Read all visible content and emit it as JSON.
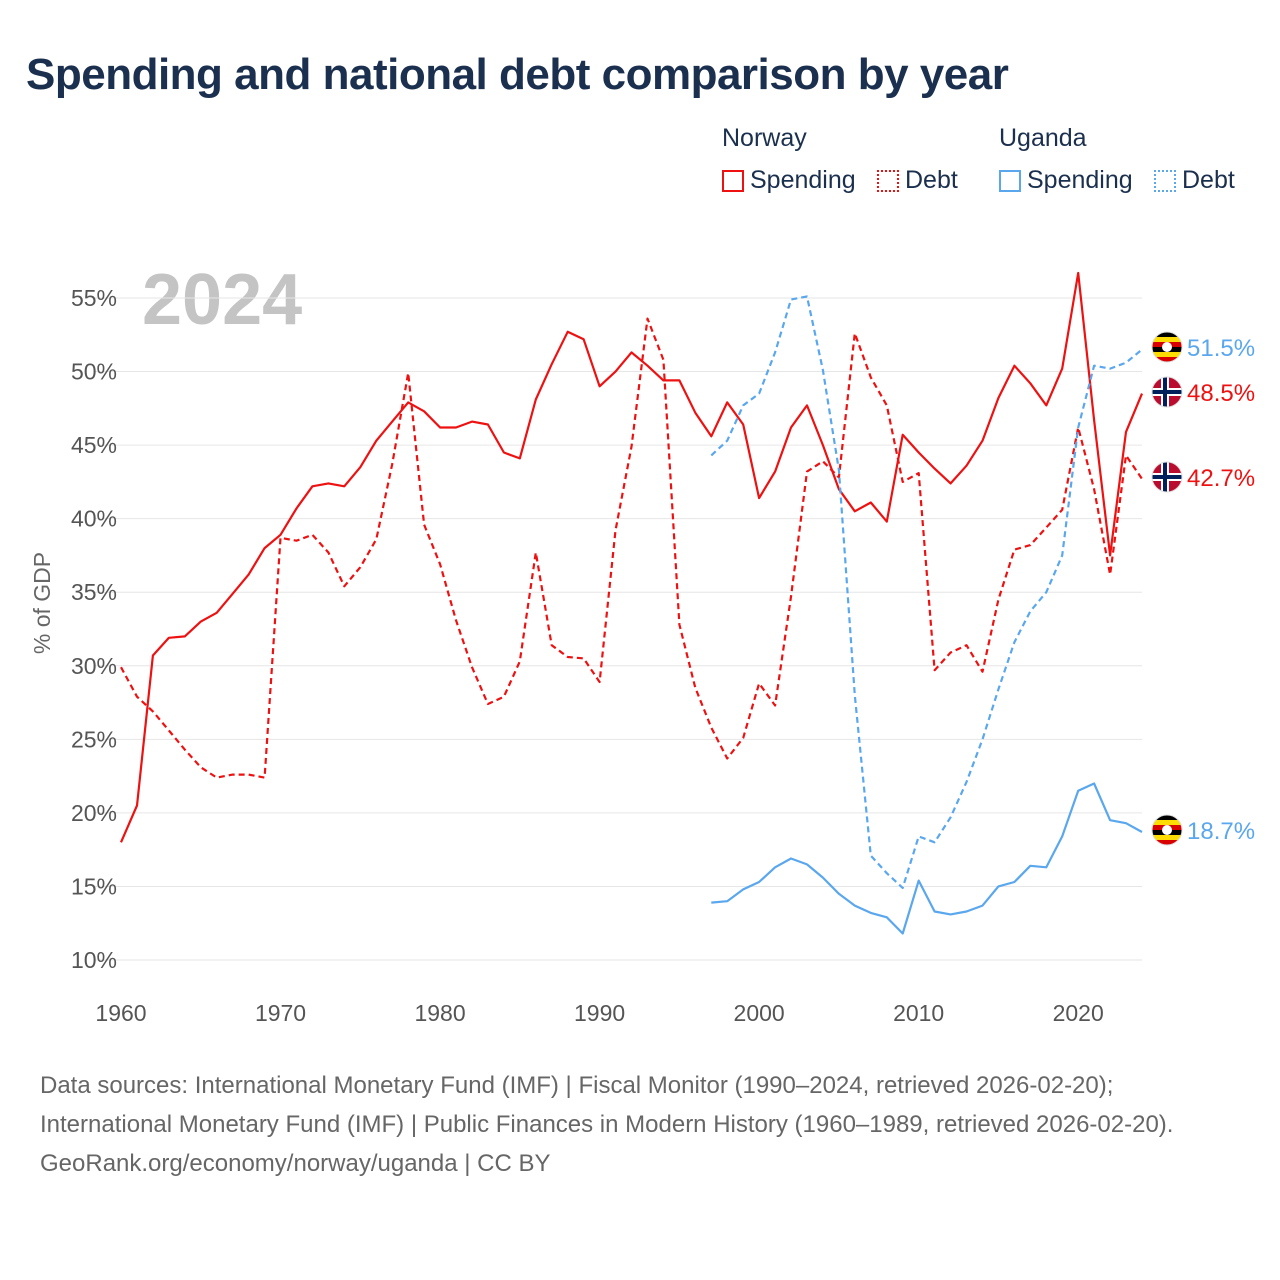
{
  "title": "Spending and national debt comparison by year",
  "legend": {
    "groups": [
      {
        "label": "Norway",
        "spending": "Spending",
        "debt": "Debt"
      },
      {
        "label": "Uganda",
        "spending": "Spending",
        "debt": "Debt"
      }
    ]
  },
  "year_watermark": "2024",
  "colors": {
    "norway": "#ee1111",
    "uganda": "#5aa7ee",
    "title": "#1b2f4e"
  },
  "chart_data": {
    "type": "line",
    "title": "Spending and national debt comparison by year",
    "xlabel": "",
    "ylabel": "% of GDP",
    "xlim": [
      1960,
      2024
    ],
    "ylim": [
      10,
      55
    ],
    "xticks": [
      1960,
      1970,
      1980,
      1990,
      2000,
      2010,
      2020
    ],
    "xtick_labels": [
      "1960",
      "1970",
      "1980",
      "1990",
      "2000",
      "2010",
      "2020"
    ],
    "yticks": [
      10,
      15,
      20,
      25,
      30,
      35,
      40,
      45,
      50,
      55
    ],
    "ytick_labels": [
      "10%",
      "15%",
      "20%",
      "25%",
      "30%",
      "35%",
      "40%",
      "45%",
      "50%",
      "55%"
    ],
    "grid": true,
    "legend_position": "top-right",
    "series": [
      {
        "name": "Norway Spending",
        "country": "norway",
        "style": "solid",
        "start": 1960,
        "end_label": "48.5%",
        "values": [
          18.0,
          20.5,
          30.7,
          31.9,
          32.0,
          33.0,
          33.6,
          34.9,
          36.2,
          38.0,
          38.9,
          40.7,
          42.2,
          42.4,
          42.2,
          43.5,
          45.3,
          46.6,
          47.9,
          47.3,
          46.2,
          46.2,
          46.6,
          46.4,
          44.5,
          44.1,
          48.1,
          50.5,
          52.7,
          52.2,
          49.0,
          50.0,
          51.3,
          50.4,
          49.4,
          49.4,
          47.2,
          45.6,
          47.9,
          46.4,
          41.4,
          43.2,
          46.2,
          47.7,
          45.0,
          42.0,
          40.5,
          41.1,
          39.8,
          45.7,
          44.5,
          43.4,
          42.4,
          43.6,
          45.3,
          48.2,
          50.4,
          49.2,
          47.7,
          50.2,
          56.7,
          46.7,
          37.5,
          45.9,
          48.5
        ]
      },
      {
        "name": "Norway Debt",
        "country": "norway",
        "style": "dashed",
        "start": 1960,
        "end_label": "42.7%",
        "values": [
          29.9,
          27.9,
          26.9,
          25.6,
          24.3,
          23.1,
          22.4,
          22.6,
          22.6,
          22.4,
          38.7,
          38.5,
          38.9,
          37.7,
          35.4,
          36.7,
          38.6,
          43.7,
          49.9,
          39.6,
          36.9,
          33.1,
          29.9,
          27.4,
          27.9,
          30.3,
          37.7,
          31.4,
          30.6,
          30.5,
          28.9,
          39.2,
          44.9,
          53.6,
          50.8,
          32.8,
          28.5,
          25.8,
          23.7,
          25.1,
          28.8,
          27.3,
          34.7,
          43.2,
          43.9,
          42.8,
          52.6,
          49.6,
          47.7,
          42.5,
          43.1,
          29.7,
          30.9,
          31.4,
          29.6,
          34.5,
          37.9,
          38.2,
          39.4,
          40.6,
          46.2,
          42.0,
          36.2,
          44.3,
          42.7
        ]
      },
      {
        "name": "Uganda Spending",
        "country": "uganda",
        "style": "solid",
        "start": 1997,
        "end_label": "18.7%",
        "values": [
          13.9,
          14.0,
          14.8,
          15.3,
          16.3,
          16.9,
          16.5,
          15.6,
          14.5,
          13.7,
          13.2,
          12.9,
          11.8,
          15.4,
          13.3,
          13.1,
          13.3,
          13.7,
          15.0,
          15.3,
          16.4,
          16.3,
          18.4,
          21.5,
          22.0,
          19.5,
          19.3,
          18.7
        ]
      },
      {
        "name": "Uganda Debt",
        "country": "uganda",
        "style": "dashed",
        "start": 1997,
        "end_label": "51.5%",
        "values": [
          44.3,
          45.3,
          47.7,
          48.5,
          51.3,
          54.9,
          55.1,
          50.1,
          43.3,
          28.0,
          17.1,
          15.9,
          14.9,
          18.4,
          18.0,
          19.7,
          22.1,
          25.0,
          28.4,
          31.6,
          33.7,
          35.0,
          37.5,
          46.2,
          50.4,
          50.2,
          50.6,
          51.5
        ]
      }
    ]
  },
  "sources": {
    "line1": "Data sources: International Monetary Fund (IMF) | Fiscal Monitor (1990–2024, retrieved 2026-02-20); International Monetary Fund (IMF) | Public Finances in Modern History (1960–1989, retrieved 2026-02-20).",
    "line2": "GeoRank.org/economy/norway/uganda | CC BY"
  }
}
